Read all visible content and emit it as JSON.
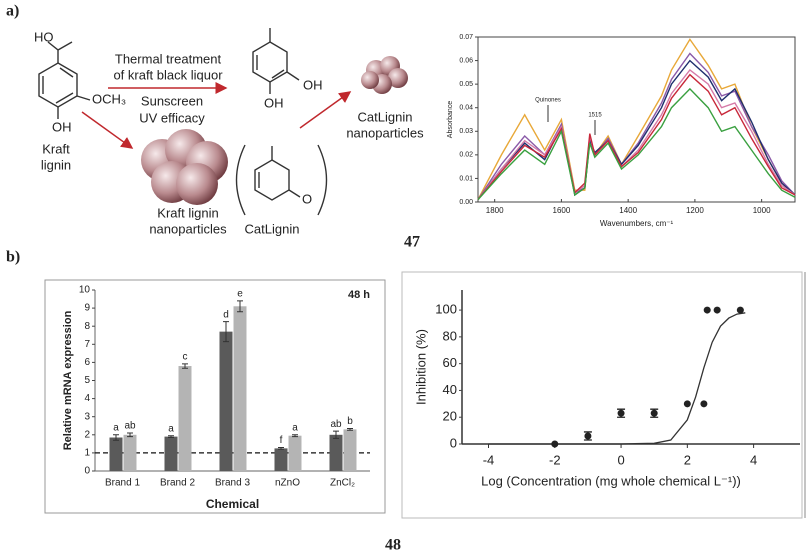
{
  "panel_labels": [
    "a)",
    "b)"
  ],
  "figure_numbers": [
    "47",
    "48"
  ],
  "scheme": {
    "ho": "HO",
    "och3": "OCH₃",
    "oh_1": "OH",
    "oh_2": "OH",
    "oh_3": "OH",
    "o": "O",
    "kraft_lignin": [
      "Kraft",
      "lignin"
    ],
    "treatment": [
      "Thermal treatment",
      "of kraft black liquor"
    ],
    "efficacy": [
      "Sunscreen",
      "UV efficacy"
    ],
    "kraft_np": [
      "Kraft lignin",
      "nanoparticles"
    ],
    "catlignin": "CatLignin",
    "cat_np": [
      "CatLignin",
      "nanoparticles"
    ]
  },
  "chart_data": [
    {
      "type": "line",
      "xlabel": "Wavenumbers, cm⁻¹",
      "ylabel": "Absorbance",
      "annotations": [
        "Quinones",
        "1515"
      ],
      "x": [
        1850,
        1780,
        1710,
        1650,
        1600,
        1560,
        1530,
        1515,
        1500,
        1460,
        1420,
        1370,
        1300,
        1270,
        1215,
        1160,
        1120,
        1080,
        1030,
        980,
        940,
        900
      ],
      "series": [
        {
          "color": "#e8a838",
          "values": [
            0.001,
            0.02,
            0.037,
            0.022,
            0.035,
            0.005,
            0.005,
            0.027,
            0.02,
            0.028,
            0.016,
            0.028,
            0.045,
            0.056,
            0.069,
            0.058,
            0.048,
            0.05,
            0.032,
            0.018,
            0.008,
            0.003
          ]
        },
        {
          "color": "#8a5aa8",
          "values": [
            0.001,
            0.016,
            0.028,
            0.02,
            0.033,
            0.004,
            0.006,
            0.027,
            0.02,
            0.027,
            0.016,
            0.025,
            0.042,
            0.052,
            0.063,
            0.055,
            0.045,
            0.047,
            0.032,
            0.02,
            0.009,
            0.003
          ]
        },
        {
          "color": "#1f2f6e",
          "values": [
            0.001,
            0.014,
            0.025,
            0.018,
            0.032,
            0.003,
            0.006,
            0.026,
            0.021,
            0.026,
            0.016,
            0.024,
            0.04,
            0.05,
            0.06,
            0.053,
            0.043,
            0.048,
            0.034,
            0.018,
            0.008,
            0.003
          ]
        },
        {
          "color": "#d67aa8",
          "values": [
            0.001,
            0.014,
            0.026,
            0.02,
            0.032,
            0.004,
            0.007,
            0.028,
            0.02,
            0.026,
            0.015,
            0.022,
            0.037,
            0.046,
            0.056,
            0.05,
            0.04,
            0.042,
            0.03,
            0.016,
            0.007,
            0.003
          ]
        },
        {
          "color": "#c8283a",
          "values": [
            0.001,
            0.013,
            0.024,
            0.019,
            0.031,
            0.004,
            0.008,
            0.029,
            0.02,
            0.026,
            0.015,
            0.021,
            0.035,
            0.044,
            0.054,
            0.047,
            0.037,
            0.04,
            0.027,
            0.015,
            0.006,
            0.003
          ]
        },
        {
          "color": "#3aa040",
          "values": [
            0.001,
            0.012,
            0.022,
            0.016,
            0.03,
            0.003,
            0.006,
            0.025,
            0.019,
            0.025,
            0.014,
            0.02,
            0.032,
            0.04,
            0.048,
            0.04,
            0.03,
            0.032,
            0.022,
            0.012,
            0.005,
            0.002
          ]
        }
      ],
      "xlim": [
        1850,
        900
      ],
      "xticks": [
        1800,
        1600,
        1400,
        1200,
        1000
      ],
      "ylim": [
        0,
        0.07
      ],
      "yticks": [
        {
          "value": 0,
          "label": "0.00"
        },
        {
          "value": 0.01,
          "label": "0.01"
        },
        {
          "value": 0.02,
          "label": "0.02"
        },
        {
          "value": 0.03,
          "label": "0.03"
        },
        {
          "value": 0.04,
          "label": "0.04"
        },
        {
          "value": 0.05,
          "label": "0.05"
        },
        {
          "value": 0.06,
          "label": "0.06"
        },
        {
          "value": 0.07,
          "label": "0.07"
        }
      ]
    },
    {
      "type": "bar",
      "title": "48 h",
      "xlabel": "Chemical",
      "ylabel": "Relative mRNA expression",
      "categories": [
        "Brand 1",
        "Brand 2",
        "Brand 3",
        "nZnO",
        "ZnCl₂"
      ],
      "series": [
        {
          "color": "#5a5a5a",
          "values": [
            1.85,
            1.9,
            7.7,
            1.25,
            2.0
          ],
          "errors": [
            0.15,
            0.05,
            0.55,
            0.05,
            0.2
          ],
          "letters": [
            "a",
            "a",
            "d",
            "f",
            "ab"
          ]
        },
        {
          "color": "#b4b4b4",
          "values": [
            2.0,
            5.8,
            9.1,
            1.95,
            2.3
          ],
          "errors": [
            0.1,
            0.12,
            0.3,
            0.05,
            0.05
          ],
          "letters": [
            "ab",
            "c",
            "e",
            "a",
            "b"
          ]
        }
      ],
      "reference_line": 1,
      "ylim": [
        0,
        10
      ],
      "yticks": [
        0,
        1,
        2,
        3,
        4,
        5,
        6,
        7,
        8,
        9,
        10
      ]
    },
    {
      "type": "scatter",
      "xlabel": "Log (Concentration (mg whole chemical L⁻¹))",
      "ylabel": "Inhibition (%)",
      "color": "#222222",
      "x": [
        -2,
        -1,
        0,
        1,
        2,
        2.5,
        2.6,
        2.9,
        3.6
      ],
      "values": [
        0,
        6,
        23,
        23,
        30,
        30,
        100,
        100,
        100
      ],
      "errors": [
        0,
        3,
        3,
        3,
        0,
        0,
        0,
        0,
        0
      ],
      "fit_x": [
        -4,
        -2,
        0,
        1,
        1.5,
        2,
        2.25,
        2.5,
        2.75,
        3,
        3.25,
        3.5,
        3.75
      ],
      "fit_values": [
        0,
        0,
        0,
        0.5,
        3,
        18,
        35,
        57,
        76,
        88,
        94,
        97,
        98
      ],
      "xlim": [
        -4.8,
        5.4
      ],
      "xticks": [
        -4,
        -2,
        0,
        2,
        4
      ],
      "ylim": [
        0,
        115
      ],
      "yticks": [
        0,
        20,
        40,
        60,
        80,
        100
      ]
    }
  ]
}
